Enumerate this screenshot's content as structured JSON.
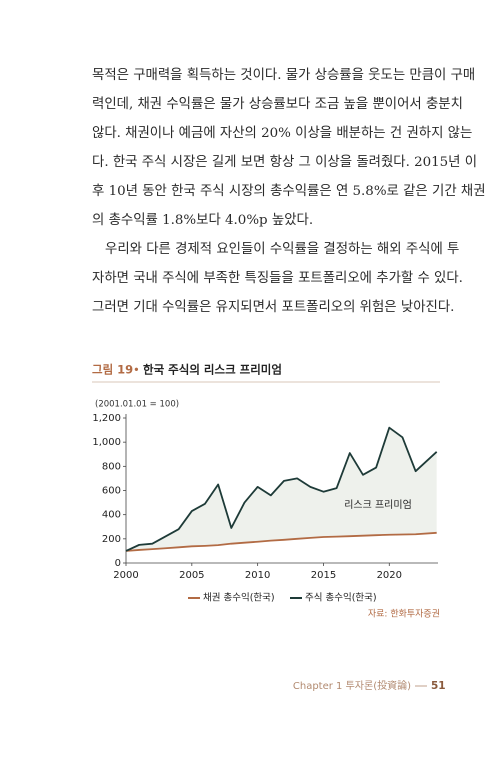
{
  "paragraphs": [
    [
      "목적은 구매력을 획득하는 것이다. 물가 상승률을 웃도는 만큼이 구매",
      "력인데, 채권 수익률은 물가 상승률보다 조금 높을 뿐이어서 충분치",
      "않다. 채권이나 예금에 자산의 20% 이상을 배분하는 건 권하지 않는",
      "다. 한국 주식 시장은 길게 보면 항상 그 이상을 돌려줬다. 2015년 이",
      "후 10년 동안 한국 주식 시장의 총수익률은 연 5.8%로 같은 기간 채권",
      "의 총수익률 1.8%보다 4.0%p 높았다."
    ],
    [
      "우리와 다른 경제적 요인들이 수익률을 결정하는 해외 주식에 투",
      "자하면 국내 주식에 부족한 특징들을 포트폴리오에 추가할 수 있다.",
      "그러면 기대 수익률은 유지되면서 포트폴리오의 위험은 낮아진다."
    ]
  ],
  "figure": {
    "label": "그림 19",
    "bullet": "•",
    "title": "한국 주식의 리스크 프리미엄",
    "source": "자료: 한화투자증권"
  },
  "chart_data": {
    "type": "line",
    "subtitle": "(2001.01.01 = 100)",
    "annotation": "리스크 프리미엄",
    "x": [
      2000,
      2001,
      2002,
      2003,
      2004,
      2005,
      2006,
      2007,
      2008,
      2009,
      2010,
      2011,
      2012,
      2013,
      2014,
      2015,
      2016,
      2017,
      2018,
      2019,
      2020,
      2021,
      2022,
      2023.6
    ],
    "series": [
      {
        "name": "채권 총수익(한국)",
        "color": "#b26b44",
        "values": [
          100,
          108,
          115,
          122,
          130,
          138,
          142,
          148,
          160,
          168,
          176,
          185,
          192,
          200,
          208,
          215,
          218,
          222,
          226,
          230,
          234,
          236,
          238,
          250
        ]
      },
      {
        "name": "주식 총수익(한국)",
        "color": "#1e3b38",
        "values": [
          100,
          150,
          160,
          220,
          280,
          430,
          490,
          650,
          290,
          500,
          630,
          560,
          680,
          700,
          630,
          590,
          620,
          910,
          730,
          790,
          1120,
          1040,
          760,
          920
        ]
      }
    ],
    "fill_between_color": "#eef1ec",
    "xlim": [
      2000,
      2023.7
    ],
    "xticks": [
      2000,
      2005,
      2010,
      2015,
      2020
    ],
    "ylim": [
      0,
      1200
    ],
    "yticks": [
      0,
      200,
      400,
      600,
      800,
      {
        "value": 1000,
        "label": "1,000"
      },
      {
        "value": 1200,
        "label": "1,200"
      }
    ]
  },
  "footer": {
    "chapter": "Chapter 1 투자론(投資論)",
    "page": "51"
  }
}
